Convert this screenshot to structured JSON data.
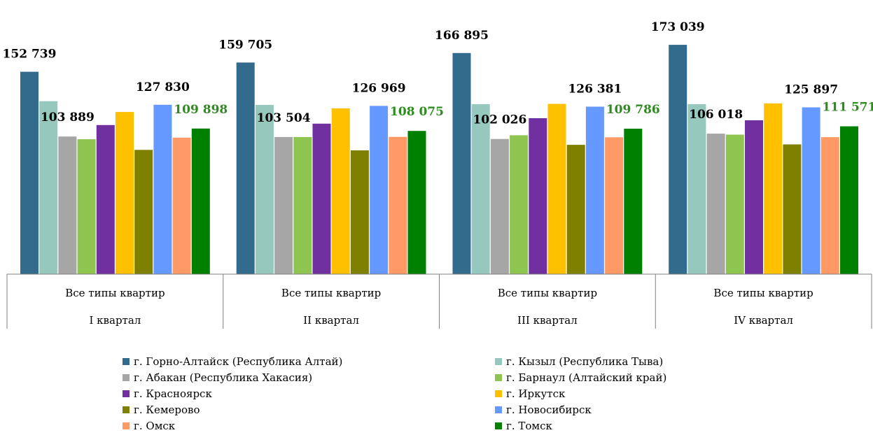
{
  "chart_data": {
    "type": "bar",
    "categories": [
      {
        "top": "Все типы квартир",
        "bottom": "I квартал"
      },
      {
        "top": "Все типы квартир",
        "bottom": "II квартал"
      },
      {
        "top": "Все типы квартир",
        "bottom": "III квартал"
      },
      {
        "top": "Все типы квартир",
        "bottom": "IV квартал"
      }
    ],
    "series": [
      {
        "name": "г. Горно-Алтайск (Республика Алтай)",
        "color": "#336B8C",
        "values": [
          152739,
          159705,
          166895,
          173039
        ]
      },
      {
        "name": "г. Кызыл (Республика Тыва)",
        "color": "#96C8BD",
        "values": [
          130500,
          127700,
          128300,
          128300
        ]
      },
      {
        "name": "г. Абакан (Республика Хакасия)",
        "color": "#A6A6A6",
        "values": [
          103889,
          103504,
          102026,
          106018
        ]
      },
      {
        "name": "г. Барнаул (Алтайский край)",
        "color": "#8DC550",
        "values": [
          101800,
          103500,
          104800,
          105300
        ]
      },
      {
        "name": "г. Красноярск",
        "color": "#7030A0",
        "values": [
          112500,
          113600,
          117700,
          116100
        ]
      },
      {
        "name": "г. Иркутск",
        "color": "#FFC000",
        "values": [
          122400,
          125100,
          128500,
          128900
        ]
      },
      {
        "name": "г. Кемерово",
        "color": "#7F7F00",
        "values": [
          93800,
          93400,
          97600,
          97900
        ]
      },
      {
        "name": "г. Новосибирск",
        "color": "#6699FF",
        "values": [
          127830,
          126969,
          126381,
          125897
        ]
      },
      {
        "name": "г. Омск",
        "color": "#FF9966",
        "values": [
          103000,
          103600,
          103300,
          103400
        ]
      },
      {
        "name": "г. Томск",
        "color": "#008000",
        "values": [
          109898,
          108075,
          109786,
          111571
        ]
      }
    ],
    "data_labels": [
      {
        "series": 0,
        "color": "#000000"
      },
      {
        "series": 2,
        "color": "#000000"
      },
      {
        "series": 7,
        "color": "#000000"
      },
      {
        "series": 9,
        "color": "#2E8B1F"
      }
    ],
    "ylim": [
      0,
      190000
    ],
    "legend_position": "bottom",
    "legend_columns": 2
  }
}
